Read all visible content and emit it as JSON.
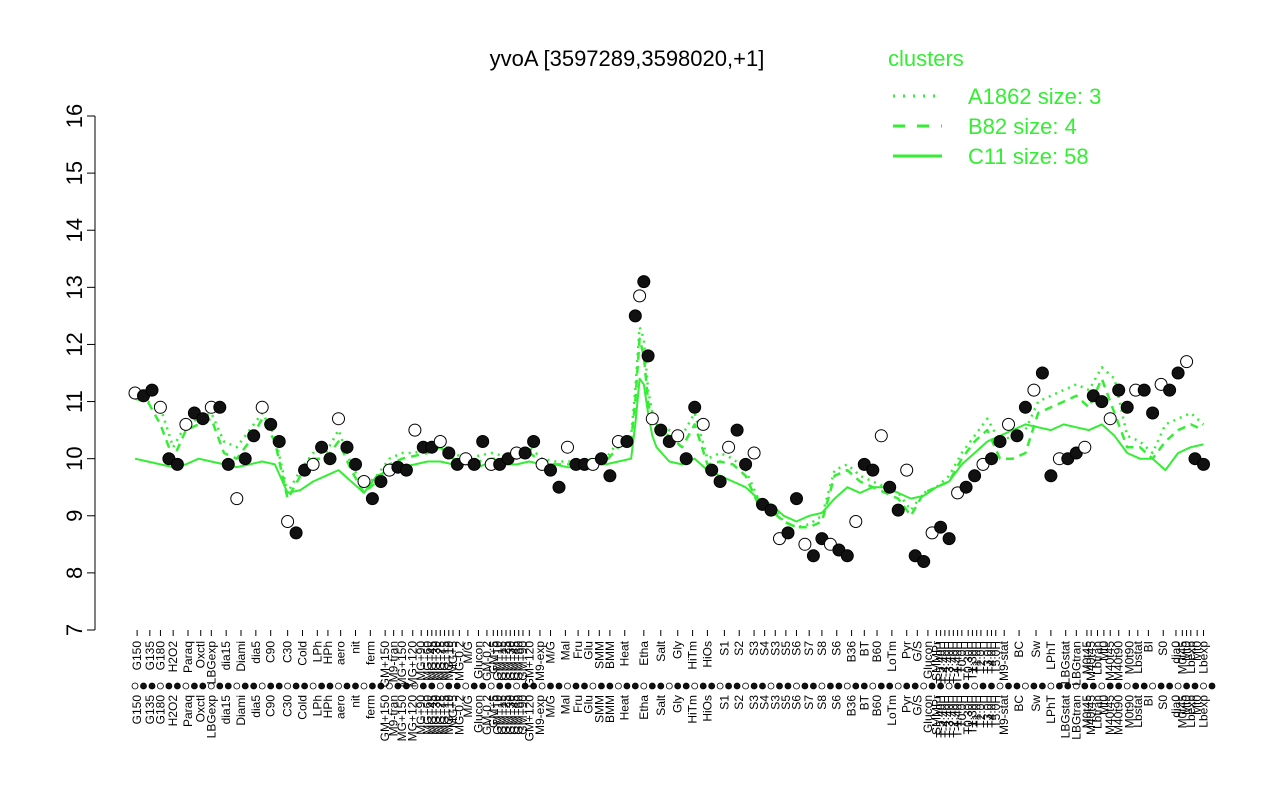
{
  "chart_data": {
    "type": "line",
    "title": "yvoA [3597289,3598020,+1]",
    "xlabel": "",
    "ylabel": "",
    "ylim": [
      7,
      16
    ],
    "yticks": [
      7,
      8,
      9,
      10,
      11,
      12,
      13,
      14,
      15,
      16
    ],
    "grid": false,
    "legend": {
      "title": "clusters",
      "placement": "top-right",
      "color": "#33ee33",
      "entries": [
        {
          "label": "A1862 size: 3",
          "style": "dotted"
        },
        {
          "label": "B82 size: 4",
          "style": "dashed"
        },
        {
          "label": "C11 size: 58",
          "style": "solid"
        }
      ]
    },
    "x_tick_labels": [
      {
        "label": "G150",
        "x": 0.5
      },
      {
        "label": "G135",
        "x": 3.5
      },
      {
        "label": "G180",
        "x": 6.0
      },
      {
        "label": "H2O2",
        "x": 9.0
      },
      {
        "label": "Paraq",
        "x": 12.5
      },
      {
        "label": "Oxctl",
        "x": 15.5
      },
      {
        "label": "LBGexp",
        "x": 18.0
      },
      {
        "label": "dia15",
        "x": 21.5
      },
      {
        "label": "Diami",
        "x": 25.0
      },
      {
        "label": "dia5",
        "x": 28.5
      },
      {
        "label": "C90",
        "x": 32.0
      },
      {
        "label": "C30",
        "x": 36.0
      },
      {
        "label": "Cold",
        "x": 39.5
      },
      {
        "label": "LPh",
        "x": 43.0
      },
      {
        "label": "HPh",
        "x": 45.5
      },
      {
        "label": "aero",
        "x": 48.5
      },
      {
        "label": "nit",
        "x": 52.0
      },
      {
        "label": "ferm",
        "x": 55.5
      },
      {
        "label": "GM+150",
        "x": 59.0
      },
      {
        "label": "M9-tran",
        "x": 61.0
      },
      {
        "label": "MG+150",
        "x": 63.0
      },
      {
        "label": "MG+120",
        "x": 65.5
      },
      {
        "label": "MG+90",
        "x": 67.5
      },
      {
        "label": "MG+60",
        "x": 69.0
      },
      {
        "label": "MG+45",
        "x": 70.0
      },
      {
        "label": "MG+30",
        "x": 71.0
      },
      {
        "label": "MG+25",
        "x": 72.0
      },
      {
        "label": "MG+15",
        "x": 73.0
      },
      {
        "label": "MG+10",
        "x": 74.0
      },
      {
        "label": "MG+5",
        "x": 75.0
      },
      {
        "label": "MG-0.2",
        "x": 76.5
      },
      {
        "label": "M/G",
        "x": 78.5
      },
      {
        "label": "Glucon",
        "x": 81.0
      },
      {
        "label": "GM-0.2",
        "x": 83.0
      },
      {
        "label": "GM+5",
        "x": 84.5
      },
      {
        "label": "GM+10",
        "x": 85.5
      },
      {
        "label": "GM+15",
        "x": 86.5
      },
      {
        "label": "GM+25",
        "x": 87.5
      },
      {
        "label": "GM+30",
        "x": 88.5
      },
      {
        "label": "GM+45",
        "x": 89.5
      },
      {
        "label": "GM+60",
        "x": 90.5
      },
      {
        "label": "GM+90",
        "x": 91.5
      },
      {
        "label": "GM+120",
        "x": 93.0
      },
      {
        "label": "M9-exp",
        "x": 95.5
      },
      {
        "label": "M/G",
        "x": 98.0
      },
      {
        "label": "Mal",
        "x": 101.5
      },
      {
        "label": "Fru",
        "x": 104.5
      },
      {
        "label": "Glu",
        "x": 107.0
      },
      {
        "label": "SMM",
        "x": 109.5
      },
      {
        "label": "BMM",
        "x": 112.0
      },
      {
        "label": "Heat",
        "x": 115.5
      },
      {
        "label": "Etha",
        "x": 120.0
      },
      {
        "label": "Salt",
        "x": 124.0
      },
      {
        "label": "Gly",
        "x": 128.0
      },
      {
        "label": "HiTm",
        "x": 131.5
      },
      {
        "label": "HiOs",
        "x": 135.0
      },
      {
        "label": "S1",
        "x": 139.0
      },
      {
        "label": "S2",
        "x": 142.5
      },
      {
        "label": "S3",
        "x": 146.0
      },
      {
        "label": "S4",
        "x": 148.5
      },
      {
        "label": "S3",
        "x": 151.0
      },
      {
        "label": "S5",
        "x": 153.5
      },
      {
        "label": "S6",
        "x": 156.0
      },
      {
        "label": "S7",
        "x": 159.0
      },
      {
        "label": "S8",
        "x": 162.0
      },
      {
        "label": "S6",
        "x": 165.5
      },
      {
        "label": "B36",
        "x": 169.0
      },
      {
        "label": "BT",
        "x": 172.0
      },
      {
        "label": "B60",
        "x": 175.0
      },
      {
        "label": "LoTm",
        "x": 178.5
      },
      {
        "label": "Pyr",
        "x": 182.0
      },
      {
        "label": "G/S",
        "x": 184.5
      },
      {
        "label": "Glucon",
        "x": 187.0
      },
      {
        "label": "SMMPr",
        "x": 189.0
      },
      {
        "label": "T-5.40H",
        "x": 190.0
      },
      {
        "label": "T-4.40H",
        "x": 191.0
      },
      {
        "label": "T-3.40H",
        "x": 192.0
      },
      {
        "label": "T-2.40H",
        "x": 193.0
      },
      {
        "label": "T-1.40H",
        "x": 194.0
      },
      {
        "label": "T0.0H",
        "x": 195.0
      },
      {
        "label": "T0.30H",
        "x": 196.5
      },
      {
        "label": "T1.30H",
        "x": 197.5
      },
      {
        "label": "T1.0H",
        "x": 198.5
      },
      {
        "label": "T2.0H",
        "x": 199.5
      },
      {
        "label": "T3.0H",
        "x": 201.0
      },
      {
        "label": "T4.0H",
        "x": 202.0
      },
      {
        "label": "T5.0H",
        "x": 203.0
      },
      {
        "label": "M9-stat",
        "x": 205.0
      },
      {
        "label": "BC",
        "x": 208.5
      },
      {
        "label": "Sw",
        "x": 212.5
      },
      {
        "label": "LPhT",
        "x": 216.0
      },
      {
        "label": "LBGstat",
        "x": 219.5
      },
      {
        "label": "LBGtran",
        "x": 222.0
      },
      {
        "label": "M0t45",
        "x": 224.5
      },
      {
        "label": "M40t45",
        "x": 225.5
      },
      {
        "label": "Lbtran",
        "x": 227.0
      },
      {
        "label": "Mt0",
        "x": 228.5
      },
      {
        "label": "M40t45",
        "x": 230.0
      },
      {
        "label": "M40t90",
        "x": 232.0
      },
      {
        "label": "M0t90",
        "x": 234.5
      },
      {
        "label": "Lbstat",
        "x": 236.5
      },
      {
        "label": "BI",
        "x": 239.0
      },
      {
        "label": "S0",
        "x": 242.5
      },
      {
        "label": "dia0",
        "x": 245.5
      },
      {
        "label": "M0t45",
        "x": 247.0
      },
      {
        "label": "Mt0",
        "x": 248.0
      },
      {
        "label": "Lbexp",
        "x": 249.0
      },
      {
        "label": "Mt0",
        "x": 250.5
      },
      {
        "label": "Lbexp",
        "x": 252.0
      }
    ],
    "x_count": 255,
    "series": [
      {
        "style": "solid",
        "x": [
          0,
          3,
          6,
          9,
          12,
          15,
          18,
          21,
          24,
          27,
          30,
          33,
          36,
          39,
          42,
          45,
          48,
          51,
          54,
          57,
          60,
          63,
          66,
          69,
          72,
          75,
          78,
          81,
          84,
          87,
          90,
          93,
          96,
          99,
          102,
          105,
          108,
          111,
          114,
          117,
          118,
          119,
          120,
          121,
          122,
          123,
          126,
          129,
          132,
          135,
          138,
          141,
          144,
          147,
          150,
          153,
          156,
          159,
          162,
          165,
          168,
          171,
          174,
          177,
          180,
          183,
          186,
          189,
          192,
          195,
          198,
          201,
          204,
          207,
          210,
          213,
          216,
          219,
          222,
          225,
          228,
          231,
          234,
          237,
          240,
          243,
          246,
          249,
          252
        ],
        "y": [
          10.0,
          9.95,
          9.9,
          9.85,
          9.9,
          10.0,
          9.95,
          9.9,
          9.85,
          9.9,
          9.95,
          9.9,
          9.4,
          9.45,
          9.6,
          9.7,
          9.8,
          9.6,
          9.4,
          9.7,
          9.8,
          9.85,
          9.9,
          9.95,
          9.95,
          9.9,
          9.9,
          9.85,
          9.95,
          9.9,
          9.9,
          9.95,
          9.9,
          9.9,
          9.85,
          9.85,
          9.9,
          9.9,
          9.95,
          10.0,
          10.6,
          11.4,
          11.3,
          10.8,
          10.4,
          10.2,
          9.95,
          9.9,
          10.0,
          9.8,
          9.7,
          9.6,
          9.5,
          9.3,
          9.2,
          9.0,
          8.9,
          9.0,
          9.05,
          9.3,
          9.5,
          9.4,
          9.5,
          9.5,
          9.4,
          9.3,
          9.35,
          9.5,
          9.6,
          9.9,
          10.1,
          10.3,
          10.4,
          10.5,
          10.6,
          10.55,
          10.5,
          10.6,
          10.55,
          10.5,
          10.6,
          10.4,
          10.1,
          10.0,
          10.0,
          9.8,
          10.1,
          10.2,
          10.25
        ]
      },
      {
        "style": "dashed",
        "x": [
          0,
          3,
          6,
          9,
          12,
          15,
          18,
          21,
          24,
          27,
          30,
          33,
          36,
          39,
          42,
          45,
          48,
          51,
          54,
          57,
          60,
          63,
          66,
          69,
          72,
          75,
          78,
          81,
          84,
          87,
          90,
          93,
          96,
          99,
          102,
          105,
          108,
          111,
          114,
          117,
          118,
          119,
          120,
          121,
          122,
          123,
          126,
          129,
          132,
          135,
          138,
          141,
          144,
          147,
          150,
          153,
          156,
          159,
          162,
          165,
          168,
          171,
          174,
          177,
          180,
          183,
          186,
          189,
          192,
          195,
          198,
          201,
          204,
          207,
          210,
          213,
          216,
          219,
          222,
          225,
          228,
          231,
          234,
          237,
          240,
          243,
          246,
          249,
          252
        ],
        "y": [
          11.05,
          11.0,
          10.6,
          10.0,
          10.5,
          10.6,
          10.7,
          10.1,
          10.0,
          10.3,
          10.7,
          10.3,
          9.3,
          9.7,
          10.0,
          10.0,
          10.3,
          9.8,
          9.4,
          9.6,
          9.9,
          10.0,
          10.05,
          10.1,
          10.2,
          10.0,
          9.9,
          9.95,
          10.0,
          10.0,
          10.0,
          10.1,
          9.95,
          9.9,
          9.9,
          9.9,
          9.95,
          9.95,
          10.2,
          10.3,
          11.0,
          12.1,
          11.8,
          11.0,
          10.6,
          10.5,
          10.4,
          10.2,
          10.6,
          9.9,
          9.95,
          9.9,
          9.7,
          9.2,
          9.1,
          8.9,
          8.8,
          8.8,
          8.9,
          9.7,
          9.8,
          9.6,
          9.5,
          9.4,
          9.3,
          9.0,
          9.4,
          9.5,
          9.6,
          10.0,
          10.3,
          10.5,
          10.0,
          10.0,
          10.1,
          10.8,
          10.9,
          11.0,
          11.1,
          10.9,
          11.4,
          10.8,
          10.2,
          10.2,
          10.0,
          10.3,
          10.5,
          10.6,
          10.5
        ]
      },
      {
        "style": "dotted",
        "x": [
          0,
          3,
          6,
          9,
          12,
          15,
          18,
          21,
          24,
          27,
          30,
          33,
          36,
          39,
          42,
          45,
          48,
          51,
          54,
          57,
          60,
          63,
          66,
          69,
          72,
          75,
          78,
          81,
          84,
          87,
          90,
          93,
          96,
          99,
          102,
          105,
          108,
          111,
          114,
          117,
          118,
          119,
          120,
          121,
          122,
          123,
          126,
          129,
          132,
          135,
          138,
          141,
          144,
          147,
          150,
          153,
          156,
          159,
          162,
          165,
          168,
          171,
          174,
          177,
          180,
          183,
          186,
          189,
          192,
          195,
          198,
          201,
          204,
          207,
          210,
          213,
          216,
          219,
          222,
          225,
          228,
          231,
          234,
          237,
          240,
          243,
          246,
          249,
          252
        ],
        "y": [
          11.1,
          11.0,
          10.9,
          10.2,
          10.6,
          10.7,
          10.8,
          10.3,
          10.2,
          10.5,
          10.8,
          10.4,
          9.4,
          9.8,
          10.1,
          10.1,
          10.5,
          9.9,
          9.5,
          9.7,
          10.0,
          10.1,
          10.1,
          10.2,
          10.3,
          10.1,
          10.0,
          10.05,
          10.1,
          10.05,
          10.1,
          10.2,
          10.0,
          9.95,
          9.95,
          9.95,
          10.0,
          10.0,
          10.3,
          10.4,
          11.2,
          12.3,
          12.1,
          11.2,
          10.8,
          10.6,
          10.5,
          10.4,
          10.8,
          10.0,
          10.1,
          10.0,
          9.8,
          9.3,
          9.2,
          8.9,
          8.8,
          8.85,
          9.0,
          9.8,
          9.9,
          9.7,
          9.6,
          9.5,
          9.4,
          9.1,
          9.4,
          9.5,
          9.7,
          10.1,
          10.4,
          10.7,
          10.3,
          10.4,
          10.5,
          11.0,
          11.1,
          11.2,
          11.3,
          11.2,
          11.6,
          11.4,
          10.4,
          10.3,
          10.1,
          10.6,
          10.7,
          10.8,
          10.6
        ]
      }
    ],
    "points": {
      "x": [
        0,
        2,
        4,
        6,
        8,
        10,
        12,
        14,
        16,
        18,
        20,
        22,
        24,
        26,
        28,
        30,
        32,
        34,
        36,
        38,
        40,
        42,
        44,
        46,
        48,
        50,
        52,
        54,
        56,
        58,
        60,
        62,
        64,
        66,
        68,
        70,
        72,
        74,
        76,
        78,
        80,
        82,
        84,
        86,
        88,
        90,
        92,
        94,
        96,
        98,
        100,
        102,
        104,
        106,
        108,
        110,
        112,
        114,
        116,
        118,
        119,
        120,
        121,
        122,
        124,
        126,
        128,
        130,
        132,
        134,
        136,
        138,
        140,
        142,
        144,
        146,
        148,
        150,
        152,
        154,
        156,
        158,
        160,
        162,
        164,
        166,
        168,
        170,
        172,
        174,
        176,
        178,
        180,
        182,
        184,
        186,
        188,
        190,
        192,
        194,
        196,
        198,
        200,
        202,
        204,
        206,
        208,
        210,
        212,
        214,
        216,
        218,
        220,
        222,
        224,
        226,
        228,
        230,
        232,
        234,
        236,
        238,
        240,
        242,
        244,
        246,
        248,
        250,
        252
      ],
      "y": [
        11.15,
        11.1,
        11.2,
        10.9,
        10.0,
        9.9,
        10.6,
        10.8,
        10.7,
        10.9,
        10.9,
        9.9,
        9.3,
        10.0,
        10.4,
        10.9,
        10.6,
        10.3,
        8.9,
        8.7,
        9.8,
        9.9,
        10.2,
        10.0,
        10.7,
        10.2,
        9.9,
        9.6,
        9.3,
        9.6,
        9.8,
        9.85,
        9.8,
        10.5,
        10.2,
        10.2,
        10.3,
        10.1,
        9.9,
        10.0,
        9.9,
        10.3,
        9.9,
        9.9,
        10.0,
        10.1,
        10.1,
        10.3,
        9.9,
        9.8,
        9.5,
        10.2,
        9.9,
        9.9,
        9.9,
        10.0,
        9.7,
        10.3,
        10.3,
        12.5,
        12.85,
        13.1,
        11.8,
        10.7,
        10.5,
        10.3,
        10.4,
        10.0,
        10.9,
        10.6,
        9.8,
        9.6,
        10.2,
        10.5,
        9.9,
        10.1,
        9.2,
        9.1,
        8.6,
        8.7,
        9.3,
        8.5,
        8.3,
        8.6,
        8.5,
        8.4,
        8.3,
        8.9,
        9.9,
        9.8,
        10.4,
        9.5,
        9.1,
        9.8,
        8.3,
        8.2,
        8.7,
        8.8,
        8.6,
        9.4,
        9.5,
        9.7,
        9.9,
        10.0,
        10.3,
        10.6,
        10.4,
        10.9,
        11.2,
        11.5,
        9.7,
        10.0,
        10.0,
        10.1,
        10.2,
        11.1,
        11.0,
        10.7,
        11.2,
        10.9,
        11.2,
        11.2,
        10.8,
        11.3,
        11.2,
        11.5,
        11.7,
        10.0,
        9.9
      ]
    }
  }
}
